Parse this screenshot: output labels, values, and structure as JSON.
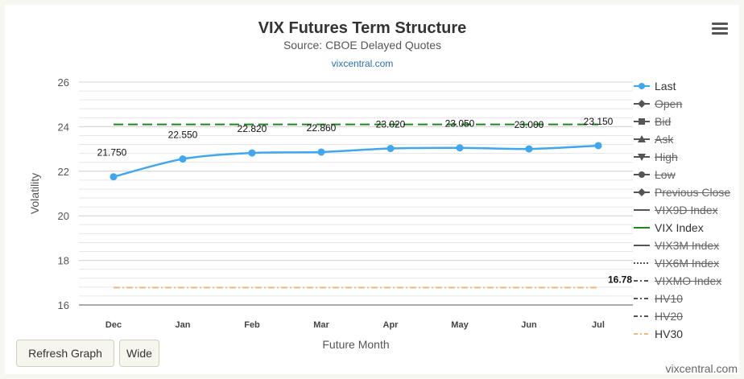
{
  "chart_data": {
    "type": "line",
    "title": "VIX Futures Term Structure",
    "subtitle": "Source: CBOE Delayed Quotes",
    "source_link": "vixcentral.com",
    "xlabel": "Future Month",
    "ylabel": "Volatility",
    "categories": [
      "Dec",
      "Jan",
      "Feb",
      "Mar",
      "Apr",
      "May",
      "Jun",
      "Jul"
    ],
    "ylim": [
      16,
      26
    ],
    "yticks": [
      16,
      18,
      20,
      22,
      24,
      26
    ],
    "grid": true,
    "legend_position": "right",
    "series": [
      {
        "name": "Last",
        "values": [
          21.75,
          22.55,
          22.82,
          22.86,
          23.02,
          23.05,
          23.0,
          23.15
        ],
        "labels": [
          "21.750",
          "22.550",
          "22.820",
          "22.860",
          "23.020",
          "23.050",
          "23.000",
          "23.150"
        ],
        "color": "#3ea7f0",
        "style": "solid-markers",
        "visible": true
      },
      {
        "name": "Open",
        "visible": false,
        "symbol": "diamond"
      },
      {
        "name": "Bid",
        "visible": false,
        "symbol": "square"
      },
      {
        "name": "Ask",
        "visible": false,
        "symbol": "triangle"
      },
      {
        "name": "High",
        "visible": false,
        "symbol": "triangle-down"
      },
      {
        "name": "Low",
        "visible": false,
        "symbol": "circle"
      },
      {
        "name": "Previous Close",
        "visible": false,
        "symbol": "diamond"
      },
      {
        "name": "VIX9D Index",
        "visible": false,
        "symbol": "line"
      },
      {
        "name": "VIX Index",
        "value": 24.1,
        "color": "#1a8a1a",
        "style": "long-dash",
        "visible": true
      },
      {
        "name": "VIX3M Index",
        "visible": false,
        "symbol": "line"
      },
      {
        "name": "VIX6M Index",
        "visible": false,
        "symbol": "dotted"
      },
      {
        "name": "VIXMO Index",
        "visible": false,
        "symbol": "dash-dot"
      },
      {
        "name": "HV10",
        "visible": false,
        "symbol": "dash-dot"
      },
      {
        "name": "HV20",
        "visible": false,
        "symbol": "dash-dot"
      },
      {
        "name": "HV30",
        "value": 16.78,
        "label": "16.78",
        "color": "#f5b87a",
        "style": "dash-dot",
        "visible": true
      }
    ]
  },
  "buttons": {
    "refresh": "Refresh Graph",
    "wide": "Wide"
  },
  "footer": "vixcentral.com"
}
